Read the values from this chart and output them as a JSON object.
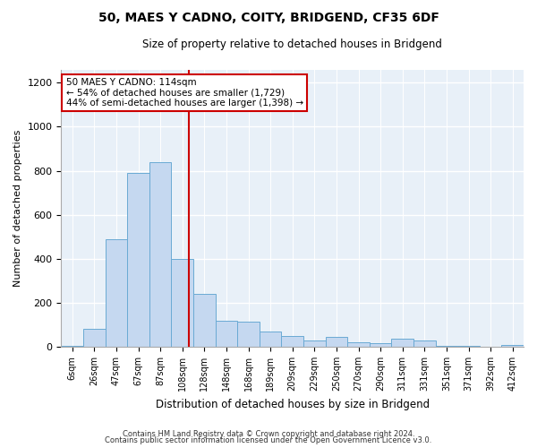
{
  "title": "50, MAES Y CADNO, COITY, BRIDGEND, CF35 6DF",
  "subtitle": "Size of property relative to detached houses in Bridgend",
  "xlabel": "Distribution of detached houses by size in Bridgend",
  "ylabel": "Number of detached properties",
  "bin_labels": [
    "6sqm",
    "26sqm",
    "47sqm",
    "67sqm",
    "87sqm",
    "108sqm",
    "128sqm",
    "148sqm",
    "168sqm",
    "189sqm",
    "209sqm",
    "229sqm",
    "250sqm",
    "270sqm",
    "290sqm",
    "311sqm",
    "331sqm",
    "351sqm",
    "371sqm",
    "392sqm",
    "412sqm"
  ],
  "bar_heights": [
    5,
    80,
    490,
    790,
    840,
    400,
    240,
    120,
    115,
    70,
    50,
    30,
    45,
    20,
    15,
    35,
    30,
    5,
    5,
    0,
    10
  ],
  "bar_color": "#c5d8f0",
  "bar_edge_color": "#6aaad4",
  "vline_color": "#cc0000",
  "vline_pos": 5.28,
  "annotation_text": "50 MAES Y CADNO: 114sqm\n← 54% of detached houses are smaller (1,729)\n44% of semi-detached houses are larger (1,398) →",
  "annotation_box_color": "#cc0000",
  "ylim": [
    0,
    1260
  ],
  "yticks": [
    0,
    200,
    400,
    600,
    800,
    1000,
    1200
  ],
  "footer_line1": "Contains HM Land Registry data © Crown copyright and database right 2024.",
  "footer_line2": "Contains public sector information licensed under the Open Government Licence v3.0.",
  "bg_color": "#ffffff",
  "plot_bg_color": "#e8f0f8"
}
